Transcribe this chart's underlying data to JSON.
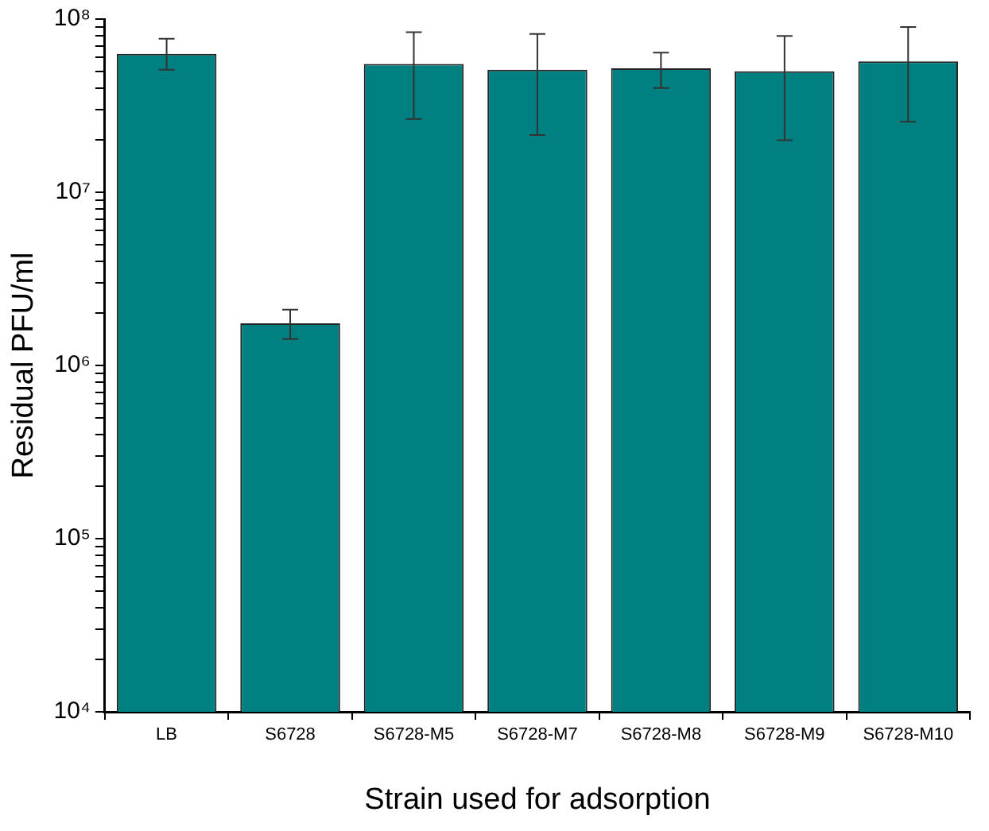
{
  "chart_data": {
    "type": "bar",
    "xlabel": "Strain used for adsorption",
    "ylabel": "Residual PFU/ml",
    "categories": [
      "LB",
      "S6728",
      "S6728-M5",
      "S6728-M7",
      "S6728-M8",
      "S6728-M9",
      "S6728-M10"
    ],
    "values": [
      63000000,
      1750000,
      55000000,
      51000000,
      52000000,
      50000000,
      57000000
    ],
    "errors": [
      [
        51000000,
        77000000
      ],
      [
        1420000,
        2100000
      ],
      [
        26500000,
        84000000
      ],
      [
        21400000,
        82000000
      ],
      [
        40000000,
        64000000
      ],
      [
        20000000,
        80000000
      ],
      [
        25500000,
        90000000
      ]
    ],
    "color": "#008080",
    "log": true,
    "ylim": [
      10000,
      100000000
    ],
    "yticks": [
      {
        "value": 10000,
        "label": "10⁴"
      },
      {
        "value": 20000,
        "label": null
      },
      {
        "value": 30000,
        "label": null
      },
      {
        "value": 40000,
        "label": null
      },
      {
        "value": 50000,
        "label": null
      },
      {
        "value": 60000,
        "label": null
      },
      {
        "value": 70000,
        "label": null
      },
      {
        "value": 80000,
        "label": null
      },
      {
        "value": 90000,
        "label": null
      },
      {
        "value": 100000,
        "label": "10⁵"
      },
      {
        "value": 200000,
        "label": null
      },
      {
        "value": 300000,
        "label": null
      },
      {
        "value": 400000,
        "label": null
      },
      {
        "value": 500000,
        "label": null
      },
      {
        "value": 600000,
        "label": null
      },
      {
        "value": 700000,
        "label": null
      },
      {
        "value": 800000,
        "label": null
      },
      {
        "value": 900000,
        "label": null
      },
      {
        "value": 1000000,
        "label": "10⁶"
      },
      {
        "value": 2000000,
        "label": null
      },
      {
        "value": 3000000,
        "label": null
      },
      {
        "value": 4000000,
        "label": null
      },
      {
        "value": 5000000,
        "label": null
      },
      {
        "value": 6000000,
        "label": null
      },
      {
        "value": 7000000,
        "label": null
      },
      {
        "value": 8000000,
        "label": null
      },
      {
        "value": 9000000,
        "label": null
      },
      {
        "value": 10000000,
        "label": "10⁷"
      },
      {
        "value": 20000000,
        "label": null
      },
      {
        "value": 30000000,
        "label": null
      },
      {
        "value": 40000000,
        "label": null
      },
      {
        "value": 50000000,
        "label": null
      },
      {
        "value": 60000000,
        "label": null
      },
      {
        "value": 70000000,
        "label": null
      },
      {
        "value": 80000000,
        "label": null
      },
      {
        "value": 90000000,
        "label": null
      },
      {
        "value": 100000000,
        "label": "10⁸"
      }
    ],
    "grid": false,
    "legend": false
  }
}
